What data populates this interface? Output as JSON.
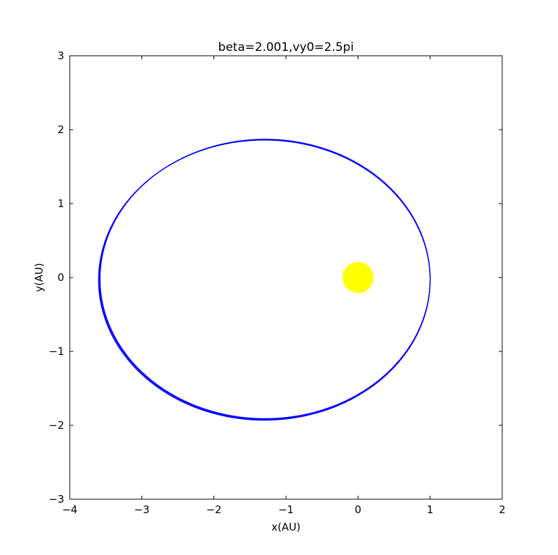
{
  "chart_data": {
    "type": "scatter",
    "title": "beta=2.001,vy0=2.5pi",
    "xlabel": "x(AU)",
    "ylabel": "y(AU)",
    "xlim": [
      -4,
      2
    ],
    "ylim": [
      -3,
      3
    ],
    "xticks": [
      -4,
      -3,
      -2,
      -1,
      0,
      1,
      2
    ],
    "yticks": [
      -3,
      -2,
      -1,
      0,
      1,
      2,
      3
    ],
    "xtick_labels": [
      "−4",
      "−3",
      "−2",
      "−1",
      "0",
      "1",
      "2"
    ],
    "ytick_labels": [
      "−3",
      "−2",
      "−1",
      "0",
      "1",
      "2",
      "3"
    ],
    "grid": false,
    "series": [
      {
        "kind": "orbit",
        "color": "#0000ff",
        "orbits": [
          {
            "x_min": -3.6,
            "x_max": 1.0,
            "y_min": -1.93,
            "y_max": 1.86,
            "y_center": -0.035
          },
          {
            "x_min": -3.58,
            "x_max": 1.0,
            "y_min": -1.91,
            "y_max": 1.87,
            "y_center": -0.02
          },
          {
            "x_min": -3.59,
            "x_max": 1.0,
            "y_min": -1.92,
            "y_max": 1.865,
            "y_center": -0.028
          }
        ]
      },
      {
        "kind": "marker",
        "color": "#ffff00",
        "x": 0,
        "y": 0,
        "radius_au": 0.21
      }
    ]
  }
}
